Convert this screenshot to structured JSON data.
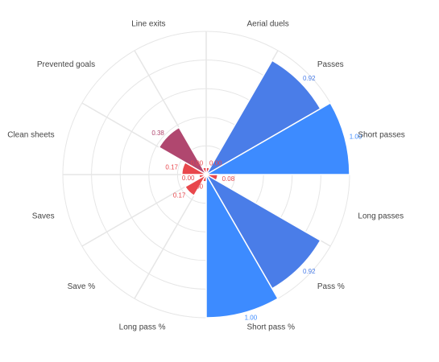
{
  "chart_data": {
    "type": "polar-bar",
    "categories": [
      "Aerial duels",
      "Passes",
      "Short passes",
      "Long passes",
      "Pass %",
      "Short pass %",
      "Long pass %",
      "Save %",
      "Saves",
      "Clean sheets",
      "Prevented goals",
      "Line exits"
    ],
    "values": [
      0.0,
      0.92,
      1.0,
      0.08,
      0.92,
      1.0,
      0.0,
      0.17,
      0.0,
      0.17,
      0.38,
      0.0
    ],
    "value_labels": [
      "0.00",
      "0.92",
      "1.00",
      "0.08",
      "0.92",
      "1.00",
      "0.00",
      "0.17",
      "0.00",
      "0.17",
      "0.38",
      "0.00"
    ],
    "colors": [
      "#e8474c",
      "#4a7de8",
      "#3d8bff",
      "#e8474c",
      "#4a7de8",
      "#3d8bff",
      "#e8474c",
      "#e8474c",
      "#e8474c",
      "#e8474c",
      "#b0476f",
      "#e8474c"
    ],
    "label_colors": [
      "#e8474c",
      "#4a7de8",
      "#3d8bff",
      "#e8474c",
      "#4a7de8",
      "#3d8bff",
      "#e8474c",
      "#e8474c",
      "#e8474c",
      "#e8474c",
      "#b0476f",
      "#e8474c"
    ],
    "rlim": [
      0,
      1
    ],
    "grid": true,
    "title": "",
    "legend": "none"
  }
}
